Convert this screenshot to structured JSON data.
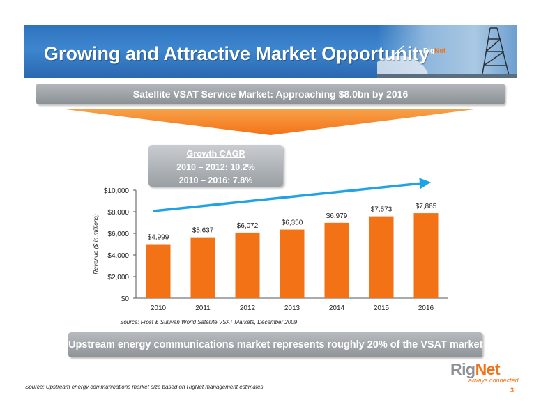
{
  "header": {
    "title": "Growing and Attractive Market Opportunity",
    "logo_rig": "Rig",
    "logo_net": "Net"
  },
  "subheader": "Satellite VSAT Service Market: Approaching $8.0bn by 2016",
  "cagr": {
    "heading": "Growth CAGR",
    "line1": "2010 – 2012: 10.2%",
    "line2": "2010 – 2016: 7.8%"
  },
  "chart_data": {
    "type": "bar",
    "categories": [
      "2010",
      "2011",
      "2012",
      "2013",
      "2014",
      "2015",
      "2016"
    ],
    "values": [
      4999,
      5637,
      6072,
      6350,
      6979,
      7573,
      7865
    ],
    "data_labels": [
      "$4,999",
      "$5,637",
      "$6,072",
      "$6,350",
      "$6,979",
      "$7,573",
      "$7,865"
    ],
    "ylabel": "Revenue ($ in millions)",
    "ylim": [
      0,
      10000
    ],
    "yticks": [
      0,
      2000,
      4000,
      6000,
      8000,
      10000
    ],
    "ytick_labels": [
      "$0",
      "$2,000",
      "$4,000",
      "$6,000",
      "$8,000",
      "$10,000"
    ],
    "bar_color": "#f47216",
    "grid": false,
    "trend_arrow_color": "#1fa3e3"
  },
  "chart_source": "Source: Frost & Sullivan World Satellite VSAT Markets, December 2009",
  "callout": "Upstream energy communications market represents roughly 20% of the VSAT market",
  "logo": {
    "rig": "Rig",
    "net": "Net",
    "tagline": "always connected."
  },
  "footer": {
    "source": "Source:  Upstream energy communications market size based on RigNet management estimates",
    "page": "3"
  },
  "colors": {
    "brand_orange": "#f47216",
    "banner_blue": "#2f73bd",
    "bar_grey": "#9a9fa4"
  }
}
